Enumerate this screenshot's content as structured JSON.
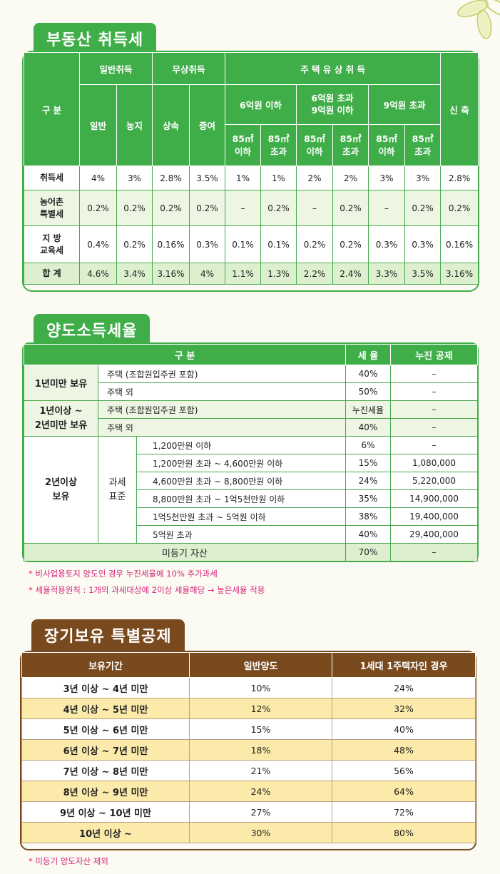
{
  "section1": {
    "title": "부동산 취득세",
    "headers": {
      "category": "구 분",
      "general": "일반취득",
      "free": "무상취득",
      "housing": "주 택 유 상 취 득",
      "new_build": "신 축",
      "general_sub": [
        "일반",
        "농지"
      ],
      "free_sub": [
        "상속",
        "증여"
      ],
      "price_bands": [
        "6억원 이하",
        "6억원 초과\n9억원 이하",
        "9억원 초과"
      ],
      "size_bands": [
        "85㎡\n이하",
        "85㎡\n초과",
        "85㎡\n이하",
        "85㎡\n초과",
        "85㎡\n이하",
        "85㎡\n초과"
      ]
    },
    "rows": [
      {
        "label": "취득세",
        "values": [
          "4%",
          "3%",
          "2.8%",
          "3.5%",
          "1%",
          "1%",
          "2%",
          "2%",
          "3%",
          "3%",
          "2.8%"
        ]
      },
      {
        "label": "농어촌\n특별세",
        "values": [
          "0.2%",
          "0.2%",
          "0.2%",
          "0.2%",
          "–",
          "0.2%",
          "–",
          "0.2%",
          "–",
          "0.2%",
          "0.2%"
        ]
      },
      {
        "label": "지 방\n교육세",
        "values": [
          "0.4%",
          "0.2%",
          "0.16%",
          "0.3%",
          "0.1%",
          "0.1%",
          "0.2%",
          "0.2%",
          "0.3%",
          "0.3%",
          "0.16%"
        ]
      },
      {
        "label": "합 계",
        "values": [
          "4.6%",
          "3.4%",
          "3.16%",
          "4%",
          "1.1%",
          "1.3%",
          "2.2%",
          "2.4%",
          "3.3%",
          "3.5%",
          "3.16%"
        ]
      }
    ]
  },
  "section2": {
    "title": "양도소득세율",
    "headers": {
      "category": "구 분",
      "rate": "세 율",
      "deduction": "누진 공제"
    },
    "group1": {
      "label": "1년미만 보유",
      "rows": [
        {
          "item": "주택 (조합원입주권 포함)",
          "rate": "40%",
          "deduction": "–"
        },
        {
          "item": "주택 외",
          "rate": "50%",
          "deduction": "–"
        }
      ]
    },
    "group2": {
      "label": "1년이상 ~\n2년미만 보유",
      "rows": [
        {
          "item": "주택 (조합원입주권 포함)",
          "rate": "누진세율",
          "deduction": "–"
        },
        {
          "item": "주택 외",
          "rate": "40%",
          "deduction": "–"
        }
      ]
    },
    "group3": {
      "label": "2년이상\n보유",
      "sublabel": "과세\n표준",
      "rows": [
        {
          "item": "1,200만원 이하",
          "rate": "6%",
          "deduction": "–"
        },
        {
          "item": "1,200만원 초과 ~ 4,600만원 이하",
          "rate": "15%",
          "deduction": "1,080,000"
        },
        {
          "item": "4,600만원 초과 ~ 8,800만원 이하",
          "rate": "24%",
          "deduction": "5,220,000"
        },
        {
          "item": "8,800만원 초과 ~ 1억5천만원 이하",
          "rate": "35%",
          "deduction": "14,900,000"
        },
        {
          "item": "1억5천만원 초과 ~ 5억원 이하",
          "rate": "38%",
          "deduction": "19,400,000"
        },
        {
          "item": "5억원 초과",
          "rate": "40%",
          "deduction": "29,400,000"
        }
      ]
    },
    "unregistered": {
      "label": "미등기 자산",
      "rate": "70%",
      "deduction": "–"
    },
    "notes": [
      "* 비사업용토지 양도인 경우 누진세율에 10% 추가과세",
      "* 세율적용원칙 : 1개의 과세대상에 2이상 세율해당 → 높은세율 적용"
    ]
  },
  "section3": {
    "title": "장기보유 특별공제",
    "headers": {
      "period": "보유기간",
      "general": "일반양도",
      "single_home": "1세대 1주택자인 경우"
    },
    "rows": [
      {
        "period": "3년 이상 ~ 4년 미만",
        "general": "10%",
        "single_home": "24%"
      },
      {
        "period": "4년 이상 ~ 5년 미만",
        "general": "12%",
        "single_home": "32%"
      },
      {
        "period": "5년 이상 ~ 6년 미만",
        "general": "15%",
        "single_home": "40%"
      },
      {
        "period": "6년 이상 ~ 7년 미만",
        "general": "18%",
        "single_home": "48%"
      },
      {
        "period": "7년 이상 ~ 8년 미만",
        "general": "21%",
        "single_home": "56%"
      },
      {
        "period": "8년 이상 ~ 9년 미만",
        "general": "24%",
        "single_home": "64%"
      },
      {
        "period": "9년 이상 ~ 10년 미만",
        "general": "27%",
        "single_home": "72%"
      },
      {
        "period": "10년 이상 ~",
        "general": "30%",
        "single_home": "80%"
      }
    ],
    "note": "* 미등기 양도자산 제외"
  },
  "colors": {
    "green": "#3fae49",
    "brown": "#7a4a1f",
    "note_pink": "#d4237a",
    "yellow_row": "#fbeaa9"
  }
}
